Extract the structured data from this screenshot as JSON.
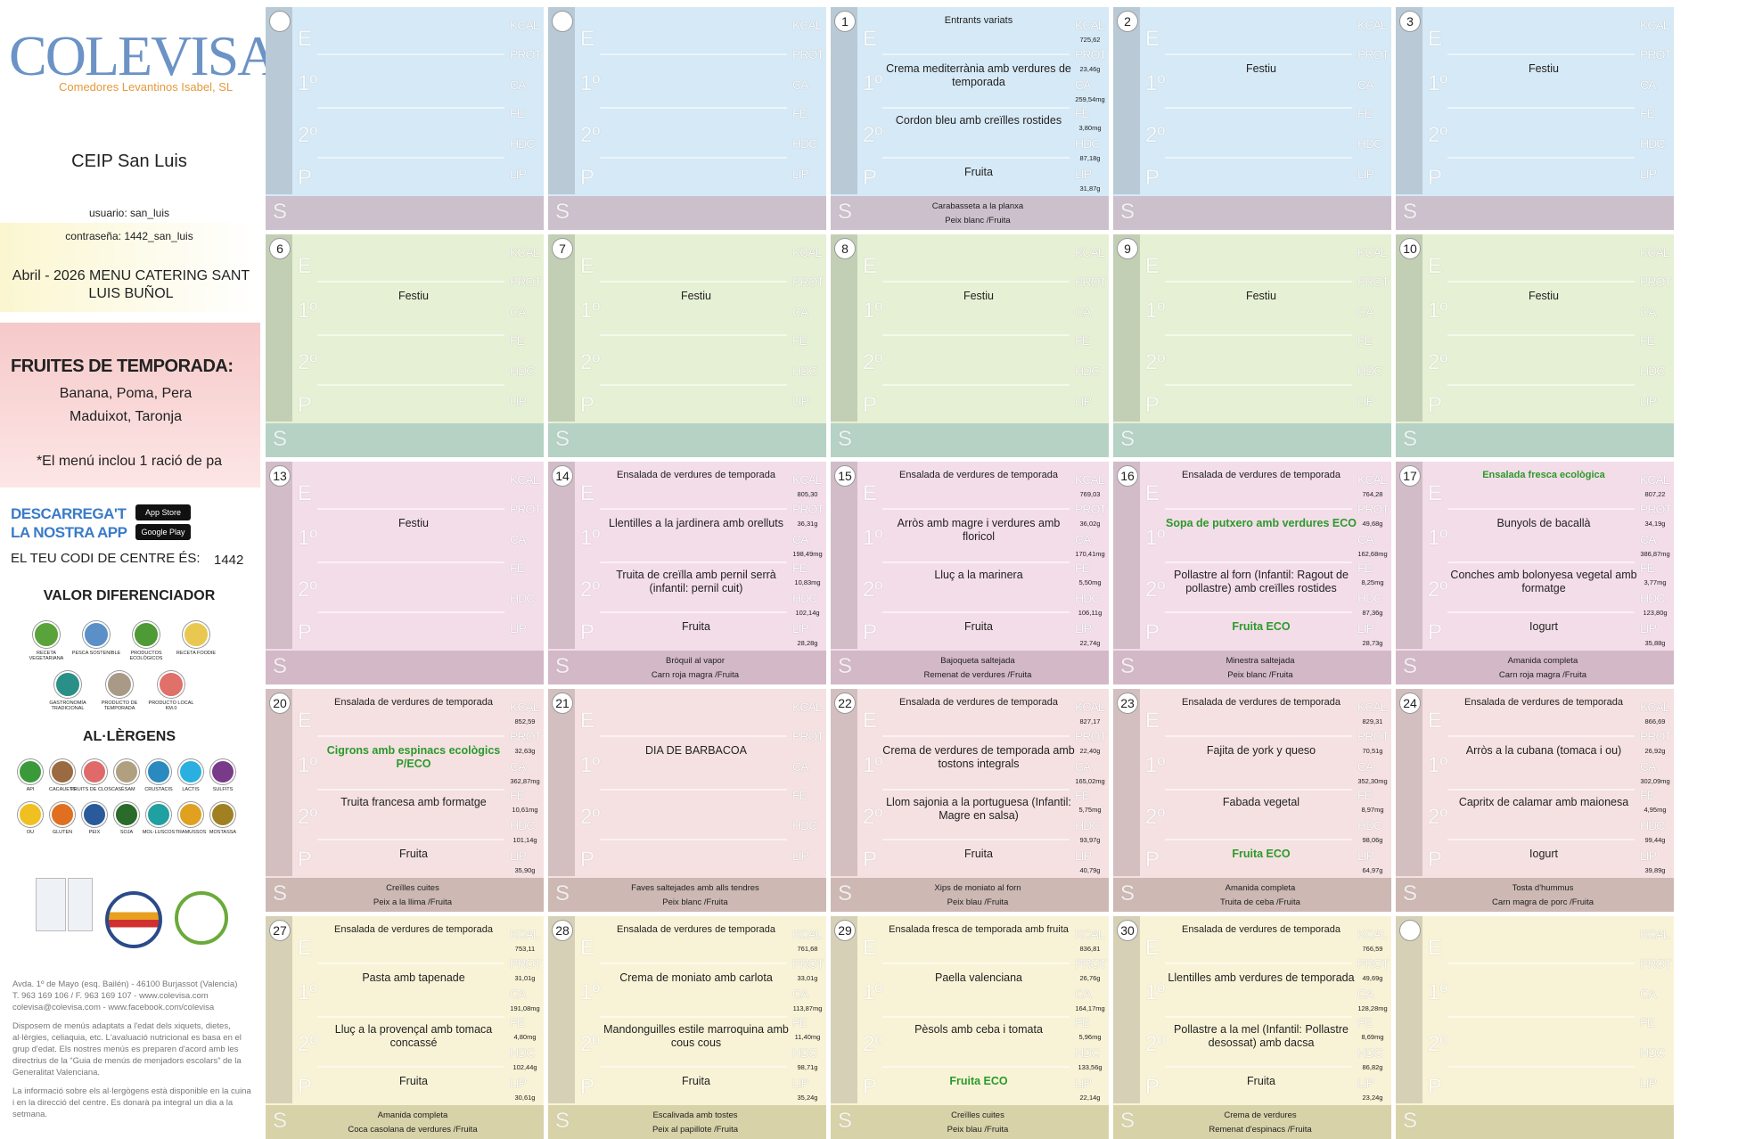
{
  "sidebar": {
    "logo": "COLEVISA",
    "company": "Comedores Levantinos Isabel, SL",
    "school": "CEIP San Luis",
    "user": "usuario: san_luis",
    "password": "contraseña: 1442_san_luis",
    "menu_title": "Abril - 2026 MENU CATERING SANT LUIS BUÑOL",
    "fruits_title": "FRUITES DE TEMPORADA:",
    "fruits_line1": "Banana, Poma, Pera",
    "fruits_line2": "Maduixot, Taronja",
    "bread_note": "*El menú inclou 1 ració de pa",
    "app_line1": "DESCARREGA'T",
    "app_line2": "LA NOSTRA APP",
    "app_store": "App Store",
    "google_play": "Google Play",
    "code_label": "EL TEU CODI DE CENTRE ÉS:",
    "code": "1442",
    "values_title": "VALOR DIFERENCIADOR",
    "values": [
      {
        "label": "RECETA VEGETARIANA",
        "color": "#5aa33a"
      },
      {
        "label": "PESCA SOSTENIBLE",
        "color": "#5b8fc8"
      },
      {
        "label": "PRODUCTOS ECOLÓGICOS",
        "color": "#4e9a34"
      },
      {
        "label": "RECETA FOODIE",
        "color": "#e8c850"
      },
      {
        "label": "GASTRONOMÍA TRADICIONAL",
        "color": "#2a8f86"
      },
      {
        "label": "PRODUCTO DE TEMPORADA",
        "color": "#a89a86"
      },
      {
        "label": "PRODUCTO LOCAL KM.0",
        "color": "#e0706a"
      }
    ],
    "allergens_title": "AL·LÈRGENS",
    "allergens": [
      {
        "label": "API",
        "color": "#3a9a3a"
      },
      {
        "label": "CACAUETS",
        "color": "#9a6a40"
      },
      {
        "label": "FRUITS DE CLOSCA",
        "color": "#e06a6a"
      },
      {
        "label": "SÈSAM",
        "color": "#b0a080"
      },
      {
        "label": "CRUSTACIS",
        "color": "#2a8ac0"
      },
      {
        "label": "LACTIS",
        "color": "#2ab0e0"
      },
      {
        "label": "SULFITS",
        "color": "#7a3a8a"
      },
      {
        "label": "OU",
        "color": "#f0c020"
      },
      {
        "label": "GLUTEN",
        "color": "#e07020"
      },
      {
        "label": "PEIX",
        "color": "#2a5a9a"
      },
      {
        "label": "SOJA",
        "color": "#2a6a2a"
      },
      {
        "label": "MOL·LUSCOS",
        "color": "#20a0a0"
      },
      {
        "label": "TRAMUSSOS",
        "color": "#e0a020"
      },
      {
        "label": "MOSTASSA",
        "color": "#a08020"
      }
    ],
    "address": "Avda. 1º de Mayo (esq. Bailén) - 46100 Burjassot (Valencia)",
    "phone": "T. 963 169 106 / F. 963 169 107 - www.colevisa.com",
    "email": "colevisa@colevisa.com - www.facebook.com/colevisa",
    "info1": "Disposem de menús adaptats a l'edat dels xiquets, dietes, al·lèrgies, celiaquia, etc. L'avaluació nutricional es basa en el grup d'edat. Els nostres menús es preparen d'acord amb les directrius de la “Guia de menús de menjadors escolars” de la Generalitat Valenciana.",
    "info2": "La informació sobre els al·lergògens està disponible en la cuina i en la direcció del centre. Es donarà pa integral un dia a la setmana."
  },
  "calendar": {
    "row_labels": [
      "E",
      "1º",
      "2º",
      "P",
      "S"
    ],
    "nutrient_labels": [
      "KCAL",
      "PROT",
      "CA",
      "FE",
      "HDC",
      "LIP"
    ],
    "weeks": [
      [
        {
          "day": null
        },
        {
          "day": null
        },
        {
          "day": 1,
          "e": "Entrants variats",
          "first": "Crema mediterrània amb verdures de temporada",
          "second": "Cordon bleu amb creïlles rostides",
          "dessert": "Fruita",
          "supper": [
            "Carabasseta a la planxa",
            "Peix blanc /Fruita"
          ],
          "nutrition": [
            "725,62",
            "23,46g",
            "259,54mg",
            "3,80mg",
            "87,18g",
            "31,87g"
          ]
        },
        {
          "day": 2,
          "note": "Festiu"
        },
        {
          "day": 3,
          "note": "Festiu"
        }
      ],
      [
        {
          "day": 6,
          "note": "Festiu"
        },
        {
          "day": 7,
          "note": "Festiu"
        },
        {
          "day": 8,
          "note": "Festiu"
        },
        {
          "day": 9,
          "note": "Festiu"
        },
        {
          "day": 10,
          "note": "Festiu"
        }
      ],
      [
        {
          "day": 13,
          "note": "Festiu"
        },
        {
          "day": 14,
          "e": "Ensalada de verdures de temporada",
          "first": "Llentilles a la jardinera amb orelluts",
          "second": "Truita de creïlla amb pernil serrà (infantil: pernil cuit)",
          "dessert": "Fruita",
          "supper": [
            "Bròquil al vapor",
            "Carn roja magra /Fruita"
          ],
          "nutrition": [
            "805,30",
            "36,31g",
            "198,49mg",
            "10,83mg",
            "102,14g",
            "28,28g"
          ]
        },
        {
          "day": 15,
          "e": "Ensalada de verdures de temporada",
          "first": "Arròs amb magre i verdures amb floricol",
          "second": "Lluç a la marinera",
          "dessert": "Fruita",
          "supper": [
            "Bajoqueta saltejada",
            "Remenat de verdures /Fruita"
          ],
          "nutrition": [
            "769,03",
            "36,02g",
            "170,41mg",
            "5,50mg",
            "106,11g",
            "22,74g"
          ]
        },
        {
          "day": 16,
          "e": "Ensalada de verdures de temporada",
          "first": "Sopa de putxero amb verdures ECO",
          "second": "Pollastre al forn (Infantil: Ragout de pollastre) amb creïlles rostides",
          "dessert": "Fruita ECO",
          "supper": [
            "Minestra saltejada",
            "Peix blanc /Fruita"
          ],
          "nutrition": [
            "764,28",
            "49,68g",
            "162,68mg",
            "8,25mg",
            "87,36g",
            "28,73g"
          ],
          "green": [
            "first",
            "dessert"
          ]
        },
        {
          "day": 17,
          "e": "Ensalada fresca ecològica",
          "first": "Bunyols de bacallà",
          "second": "Conches amb bolonyesa vegetal amb formatge",
          "dessert": "Iogurt",
          "supper": [
            "Amanida completa",
            "Carn roja magra /Fruita"
          ],
          "nutrition": [
            "807,22",
            "34,19g",
            "386,87mg",
            "3,77mg",
            "123,80g",
            "35,88g"
          ],
          "green": [
            "e"
          ]
        }
      ],
      [
        {
          "day": 20,
          "e": "Ensalada de verdures de temporada",
          "first": "Cigrons amb espinacs ecològics P/ECO",
          "second": "Truita francesa amb formatge",
          "dessert": "Fruita",
          "supper": [
            "Creïlles cuites",
            "Peix a la llima /Fruita"
          ],
          "nutrition": [
            "852,59",
            "32,63g",
            "362,87mg",
            "10,61mg",
            "101,14g",
            "35,90g"
          ],
          "green": [
            "first"
          ]
        },
        {
          "day": 21,
          "note": "DIA DE BARBACOA",
          "supper": [
            "Faves saltejades amb alls tendres",
            "Peix blanc /Fruita"
          ]
        },
        {
          "day": 22,
          "e": "Ensalada de verdures de temporada",
          "first": "Crema de verdures de temporada amb tostons integrals",
          "second": "Llom sajonia a la portuguesa (Infantil: Magre en salsa)",
          "dessert": "Fruita",
          "supper": [
            "Xips de moniato al forn",
            "Peix blau /Fruita"
          ],
          "nutrition": [
            "827,17",
            "22,40g",
            "165,02mg",
            "5,75mg",
            "93,97g",
            "40,79g"
          ]
        },
        {
          "day": 23,
          "e": "Ensalada de verdures de temporada",
          "first": "Fajita de york y queso",
          "second": "Fabada vegetal",
          "dessert": "Fruita ECO",
          "supper": [
            "Amanida completa",
            "Truita de ceba /Fruita"
          ],
          "nutrition": [
            "829,31",
            "70,51g",
            "352,30mg",
            "8,97mg",
            "98,06g",
            "64,97g"
          ],
          "green": [
            "dessert"
          ]
        },
        {
          "day": 24,
          "e": "Ensalada de verdures de temporada",
          "first": "Arròs a la cubana (tomaca i ou)",
          "second": "Capritx de calamar amb maionesa",
          "dessert": "Iogurt",
          "supper": [
            "Tosta d'hummus",
            "Carn magra de porc /Fruita"
          ],
          "nutrition": [
            "866,69",
            "26,92g",
            "302,09mg",
            "4,95mg",
            "99,44g",
            "39,89g"
          ]
        }
      ],
      [
        {
          "day": 27,
          "e": "Ensalada de verdures de temporada",
          "first": "Pasta amb tapenade",
          "second": "Lluç a la provençal amb tomaca concassé",
          "dessert": "Fruita",
          "supper": [
            "Amanida completa",
            "Coca casolana de verdures /Fruita"
          ],
          "nutrition": [
            "753,11",
            "31,01g",
            "191,08mg",
            "4,80mg",
            "102,44g",
            "30,61g"
          ]
        },
        {
          "day": 28,
          "e": "Ensalada de verdures de temporada",
          "first": "Crema de moniato  amb carlota",
          "second": "Mandonguilles estile marroquina amb cous cous",
          "dessert": "Fruita",
          "supper": [
            "Escalivada amb tostes",
            "Peix al papillote /Fruita"
          ],
          "nutrition": [
            "761,68",
            "33,01g",
            "113,87mg",
            "11,40mg",
            "98,71g",
            "35,24g"
          ]
        },
        {
          "day": 29,
          "e": "Ensalada fresca de temporada amb fruita",
          "first": "Paella valenciana",
          "second": "Pèsols amb ceba i tomata",
          "dessert": "Fruita ECO",
          "supper": [
            "Creïlles cuites",
            "Peix blau /Fruita"
          ],
          "nutrition": [
            "836,81",
            "26,76g",
            "164,17mg",
            "5,96mg",
            "133,56g",
            "22,14g"
          ],
          "green": [
            "dessert"
          ]
        },
        {
          "day": 30,
          "e": "Ensalada de verdures de temporada",
          "first": "Llentilles amb verdures de temporada",
          "second": "Pollastre a la mel (Infantil: Pollastre desossat) amb dacsa",
          "dessert": "Fruita",
          "supper": [
            "Crema de verdures",
            "Remenat d'espinacs /Fruita"
          ],
          "nutrition": [
            "766,59",
            "49,69g",
            "128,28mg",
            "8,69mg",
            "86,82g",
            "23,24g"
          ]
        },
        {
          "day": null
        }
      ]
    ],
    "week_colors": [
      {
        "bg": "#d6e9f6",
        "strip": "#b9cad6",
        "band": "#cbc0cb"
      },
      {
        "bg": "#e6f0d4",
        "strip": "#c3cfb4",
        "band": "#b5d2c5"
      },
      {
        "bg": "#f3dde8",
        "strip": "#d2bcc8",
        "band": "#d3b8c8"
      },
      {
        "bg": "#f5e1e2",
        "strip": "#d3bfc0",
        "band": "#cdb8b4"
      },
      {
        "bg": "#f8f3d6",
        "strip": "#d6d1b6",
        "band": "#d8d2a9"
      }
    ]
  }
}
